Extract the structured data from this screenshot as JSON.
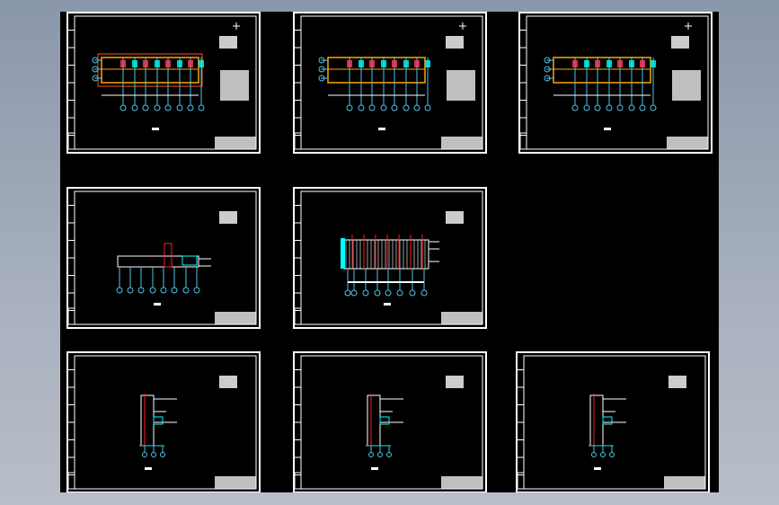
{
  "viewer": {
    "background": "#000000"
  },
  "colors": {
    "frame": "#ffffff",
    "grid": "#4fc3e8",
    "wall": "#ffa500",
    "red": "#ff2020",
    "magenta": "#ff00ff",
    "cyan": "#00ffff"
  },
  "sheets": [
    {
      "kind": "floor-plan",
      "variant": 1
    },
    {
      "kind": "floor-plan",
      "variant": 2
    },
    {
      "kind": "floor-plan",
      "variant": 3
    },
    {
      "kind": "elevation",
      "variant": 1
    },
    {
      "kind": "roof-plan",
      "variant": 1
    },
    {
      "kind": "section",
      "variant": 1
    },
    {
      "kind": "section",
      "variant": 2
    },
    {
      "kind": "section",
      "variant": 3
    }
  ]
}
